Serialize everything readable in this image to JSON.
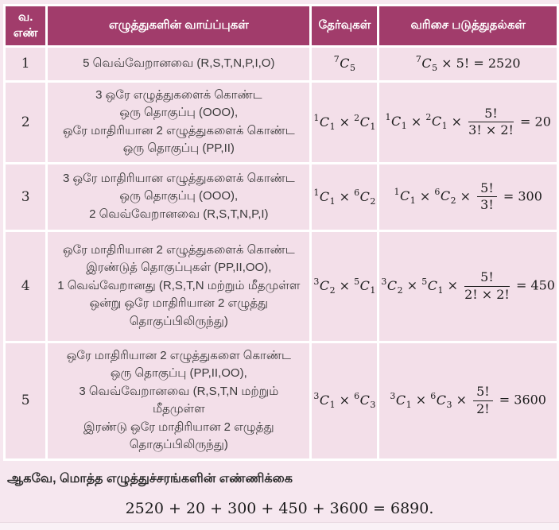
{
  "page": {
    "background": "#f6e7ef",
    "header_bg": "#a13c6b",
    "header_text_color": "#ffffff",
    "cell_bg": "#f3dfe9",
    "grid_color": "#ffffff",
    "text_color": "#3d3d3d"
  },
  "table": {
    "headers": [
      {
        "id": "sno",
        "label": "வ. எண்"
      },
      {
        "id": "possibilities",
        "label": "எழுத்துகளின் வாய்ப்புகள்"
      },
      {
        "id": "selections",
        "label": "தேர்வுகள்"
      },
      {
        "id": "arrangements",
        "label": "வரிசை படுத்துதல்கள்"
      }
    ],
    "rows": [
      {
        "num": "1",
        "desc_lines": [
          "5 வெவ்வேறானவை (R,S,T,N,P,I,O)"
        ],
        "selection_combos": [
          {
            "n": "7",
            "r": "5"
          }
        ],
        "arrangement": {
          "combos": [
            {
              "n": "7",
              "r": "5"
            }
          ],
          "factor": "5!",
          "fraction": null,
          "result": "2520"
        }
      },
      {
        "num": "2",
        "desc_lines": [
          "3 ஒரே எழுத்துகளைக் கொண்ட",
          "ஒரு தொகுப்பு (OOO),",
          "ஒரே மாதிரியான 2 எழுத்துகளைக் கொண்ட",
          "ஒரு தொகுப்பு (PP,II)"
        ],
        "selection_combos": [
          {
            "n": "1",
            "r": "1"
          },
          {
            "n": "2",
            "r": "1"
          }
        ],
        "arrangement": {
          "combos": [
            {
              "n": "1",
              "r": "1"
            },
            {
              "n": "2",
              "r": "1"
            }
          ],
          "factor": null,
          "fraction": {
            "num": "5!",
            "den": "3! × 2!"
          },
          "result": "20"
        }
      },
      {
        "num": "3",
        "desc_lines": [
          "3 ஒரே மாதிரியான எழுத்துகளைக் கொண்ட",
          "ஒரு தொகுப்பு (OOO),",
          "2 வெவ்வேறானவை (R,S,T,N,P,I)"
        ],
        "selection_combos": [
          {
            "n": "1",
            "r": "1"
          },
          {
            "n": "6",
            "r": "2"
          }
        ],
        "arrangement": {
          "combos": [
            {
              "n": "1",
              "r": "1"
            },
            {
              "n": "6",
              "r": "2"
            }
          ],
          "factor": null,
          "fraction": {
            "num": "5!",
            "den": "3!"
          },
          "result": "300"
        }
      },
      {
        "num": "4",
        "desc_lines": [
          "ஒரே மாதிரியான 2 எழுத்துகளைக் கொண்ட",
          "இரண்டுத் தொகுப்புகள் (PP,II,OO),",
          "1 வெவ்வேறானது (R,S,T,N மற்றும் மீதமுள்ள",
          "ஒன்று ஒரே மாதிரியான 2 எழுத்து",
          "தொகுப்பிலிருந்து)"
        ],
        "selection_combos": [
          {
            "n": "3",
            "r": "2"
          },
          {
            "n": "5",
            "r": "1"
          }
        ],
        "arrangement": {
          "combos": [
            {
              "n": "3",
              "r": "2"
            },
            {
              "n": "5",
              "r": "1"
            }
          ],
          "factor": null,
          "fraction": {
            "num": "5!",
            "den": "2! × 2!"
          },
          "result": "450"
        }
      },
      {
        "num": "5",
        "desc_lines": [
          "ஒரே மாதிரியான 2 எழுத்துகளை கொண்ட",
          "ஒரு தொகுப்பு (PP,II,OO),",
          "3 வெவ்வேறானவை (R,S,T,N மற்றும் மீதமுள்ள",
          "இரண்டு ஒரே மாதிரியான 2 எழுத்து",
          "தொகுப்பிலிருந்து)"
        ],
        "selection_combos": [
          {
            "n": "3",
            "r": "1"
          },
          {
            "n": "6",
            "r": "3"
          }
        ],
        "arrangement": {
          "combos": [
            {
              "n": "3",
              "r": "1"
            },
            {
              "n": "6",
              "r": "3"
            }
          ],
          "factor": null,
          "fraction": {
            "num": "5!",
            "den": "2!"
          },
          "result": "3600"
        }
      }
    ]
  },
  "footer": {
    "conclusion": "ஆகவே, மொத்த எழுத்துச்சரங்களின் எண்ணிக்கை",
    "equation": "2520 + 20 + 300 + 450 + 3600 = 6890."
  }
}
